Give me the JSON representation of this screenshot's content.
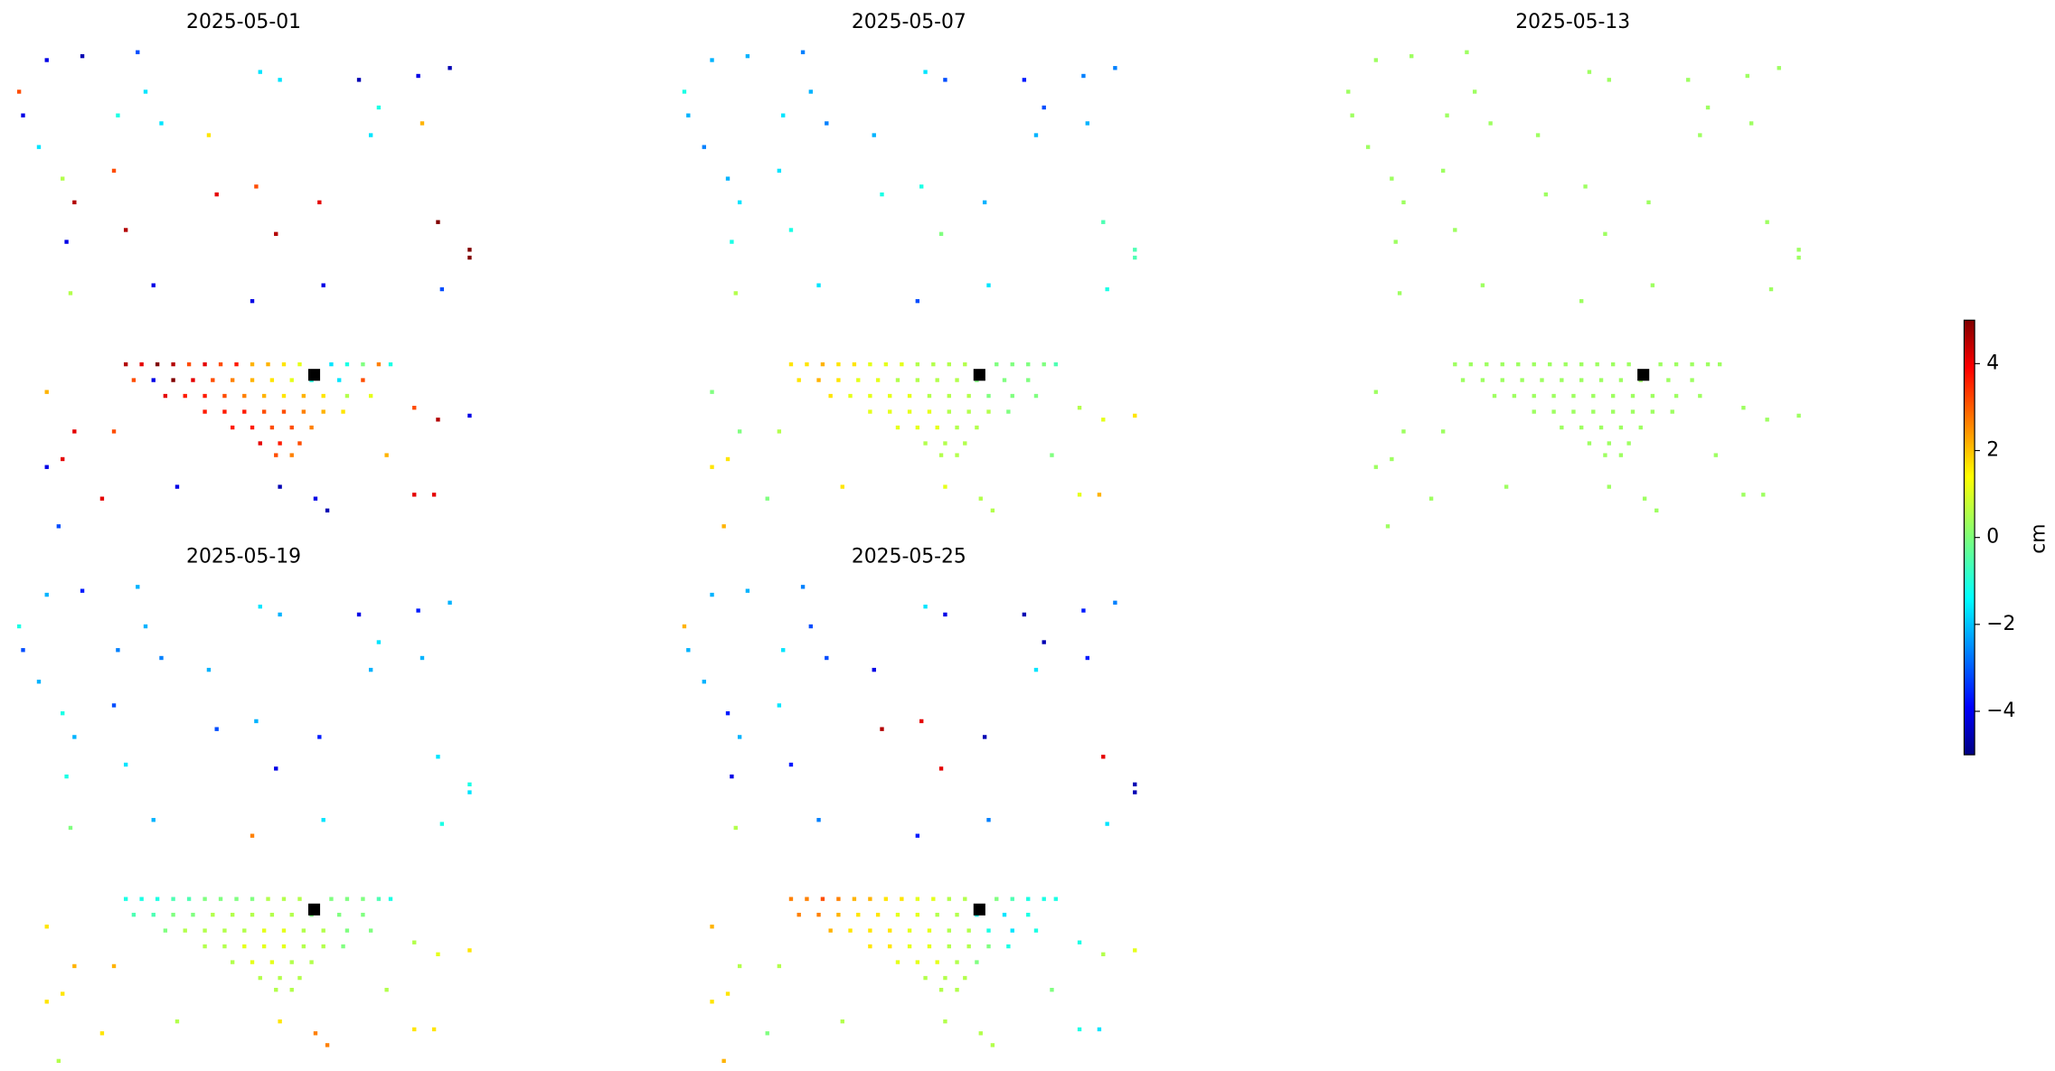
{
  "chart_data": {
    "type": "heatmap",
    "colormap": "jet",
    "xlim": [
      0,
      120
    ],
    "ylim": [
      0,
      125
    ],
    "x": [
      8,
      17,
      31,
      62,
      67,
      87,
      102,
      110,
      1,
      2,
      33,
      92,
      26,
      37,
      103,
      6,
      49,
      90,
      12,
      25,
      61,
      15,
      51,
      77,
      107,
      13,
      28,
      66,
      115,
      115,
      14,
      35,
      78,
      108,
      60,
      8,
      15,
      25,
      94,
      101,
      107,
      115,
      8,
      12,
      22,
      41,
      67,
      76,
      101,
      106,
      11,
      79,
      28,
      32,
      36,
      40,
      44,
      48,
      52,
      56,
      60,
      64,
      68,
      72,
      80,
      84,
      88,
      92,
      95,
      30,
      35,
      40,
      45,
      50,
      55,
      60,
      65,
      70,
      75,
      82,
      88,
      38,
      43,
      48,
      53,
      58,
      63,
      68,
      73,
      78,
      84,
      90,
      48,
      53,
      58,
      63,
      68,
      73,
      78,
      83,
      55,
      60,
      65,
      70,
      75,
      62,
      67,
      72,
      66,
      70
    ],
    "y": [
      3,
      2,
      1,
      6,
      8,
      8,
      7,
      5,
      11,
      17,
      11,
      15,
      17,
      19,
      19,
      25,
      22,
      22,
      33,
      31,
      35,
      39,
      37,
      39,
      44,
      49,
      46,
      47,
      51,
      53,
      62,
      60,
      60,
      61,
      64,
      87,
      97,
      97,
      103,
      91,
      94,
      93,
      106,
      104,
      114,
      111,
      111,
      114,
      113,
      113,
      121,
      117,
      80,
      80,
      80,
      80,
      80,
      80,
      80,
      80,
      80,
      80,
      80,
      80,
      80,
      80,
      80,
      80,
      80,
      84,
      84,
      84,
      84,
      84,
      84,
      84,
      84,
      84,
      84,
      84,
      84,
      88,
      88,
      88,
      88,
      88,
      88,
      88,
      88,
      88,
      88,
      88,
      92,
      92,
      92,
      92,
      92,
      92,
      92,
      92,
      96,
      96,
      96,
      96,
      96,
      100,
      100,
      100,
      103,
      103
    ],
    "reference": {
      "x": 76,
      "y": 83,
      "color": "#000000"
    },
    "panels": [
      {
        "title": "2025-05-01",
        "values": [
          -4,
          -4.5,
          -3,
          -1.5,
          -1.5,
          -4.5,
          -4,
          -4.5,
          3,
          -4,
          -1.5,
          -1,
          -1,
          -1.5,
          2,
          -1.5,
          1.5,
          -1.5,
          0.5,
          3,
          3,
          4.5,
          4,
          4,
          5,
          -4,
          4.5,
          4.5,
          5,
          5,
          0.5,
          -4,
          -4,
          -3,
          -4,
          2,
          4,
          3,
          2,
          3,
          4.5,
          -4,
          -4,
          4,
          4,
          -4,
          -4.5,
          -4,
          4,
          4,
          -3,
          -4.5,
          4.5,
          4,
          5,
          4.5,
          3,
          4,
          3,
          3.5,
          2,
          2,
          1.5,
          1,
          -1.5,
          -1,
          0,
          2.5,
          -1,
          3,
          -4,
          5,
          4,
          3,
          2.5,
          2,
          1.5,
          1,
          -1,
          -1.5,
          3,
          4,
          3.5,
          3.5,
          3,
          2.5,
          2,
          1.5,
          2,
          1.5,
          0.5,
          1,
          3.5,
          3.5,
          3.5,
          3,
          3,
          2.5,
          2,
          1.5,
          3.5,
          3.5,
          3,
          3,
          2.5,
          4,
          3.5,
          3,
          3,
          2.5
        ]
      },
      {
        "title": "2025-05-07",
        "values": [
          -2,
          -2,
          -2.5,
          -1.5,
          -3,
          -3.5,
          -2.5,
          -2.5,
          -1,
          -2,
          -2,
          -3,
          -1.5,
          -2.5,
          -2,
          -2.5,
          -2,
          -2,
          -2,
          -1.5,
          -1,
          -1.5,
          -1,
          -2,
          -0.5,
          -1,
          -1,
          0,
          -0.5,
          -0.5,
          0.5,
          -1.5,
          -1.5,
          -1,
          -3,
          0,
          0,
          0.5,
          0,
          0.5,
          1,
          1.5,
          1.5,
          1.5,
          0,
          1.5,
          1,
          0.5,
          1,
          2,
          2,
          0.5,
          1.5,
          1.5,
          2,
          1.5,
          1.5,
          1,
          1,
          1,
          0.5,
          0.5,
          0.5,
          0.5,
          0,
          0,
          0,
          0,
          -0.5,
          1.5,
          2,
          1.5,
          1,
          1,
          0.5,
          0.5,
          0.5,
          0.5,
          0,
          0,
          0,
          1.5,
          1,
          1,
          1,
          1,
          0.5,
          0.5,
          0.5,
          0,
          0,
          0,
          1,
          1,
          1,
          1,
          0.5,
          0.5,
          0.5,
          0,
          1,
          1,
          1,
          0.5,
          0.5,
          0.5,
          0.5,
          0.5,
          0.5,
          0.5
        ]
      },
      {
        "title": "2025-05-13",
        "values": [
          0.3,
          0.3,
          0.3,
          0.3,
          0.3,
          0.3,
          0.3,
          0.3,
          0.3,
          0.3,
          0.3,
          0.3,
          0.3,
          0.3,
          0.3,
          0.3,
          0.3,
          0.3,
          0.3,
          0.3,
          0.3,
          0.3,
          0.3,
          0.3,
          0.3,
          0.3,
          0.3,
          0.3,
          0.3,
          0.3,
          0.3,
          0.3,
          0.3,
          0.3,
          0.3,
          0.3,
          0.3,
          0.3,
          0.3,
          0.3,
          0.3,
          0.3,
          0.3,
          0.3,
          0.3,
          0.3,
          0.3,
          0.3,
          0.3,
          0.3,
          0.3,
          0.3,
          0.3,
          0.3,
          0.3,
          0.3,
          0.3,
          0.3,
          0.3,
          0.3,
          0.3,
          0.3,
          0.3,
          0.3,
          0.3,
          0.3,
          0.3,
          0.3,
          0.3,
          0.3,
          0.3,
          0.3,
          0.3,
          0.3,
          0.3,
          0.3,
          0.3,
          0.3,
          0.3,
          0.3,
          0.3,
          0.3,
          0.3,
          0.3,
          0.3,
          0.3,
          0.3,
          0.3,
          0.3,
          0.3,
          0.3,
          0.3,
          0.3,
          0.3,
          0.3,
          0.3,
          0.3,
          0.3,
          0.3,
          0.3,
          0.3,
          0.3,
          0.3,
          0.3,
          0.3,
          0.3,
          0.3,
          0.3,
          0.3,
          0.3
        ]
      },
      {
        "title": "2025-05-19",
        "values": [
          -2,
          -3.5,
          -2,
          -1.5,
          -2,
          -4,
          -3.5,
          -2,
          -1,
          -3,
          -2,
          -1.5,
          -2.5,
          -2.5,
          -2,
          -2,
          -2,
          -2,
          -1,
          -3,
          -2,
          -2,
          -3,
          -3.5,
          -1.5,
          -1,
          -1.5,
          -4,
          -1,
          -1.5,
          0,
          -2,
          -1.5,
          -1,
          2.5,
          1.5,
          2,
          2,
          0.5,
          0.5,
          1,
          1.5,
          1.5,
          1.5,
          1.5,
          0.5,
          1.5,
          2.5,
          1.5,
          1.5,
          0.5,
          2.5,
          -1,
          -1,
          -1,
          -0.5,
          -0.5,
          0,
          0,
          0,
          0,
          0.5,
          0.5,
          0.5,
          0,
          0,
          0,
          -0.5,
          -1,
          -0.5,
          -0.5,
          0,
          0,
          0.5,
          0.5,
          0.5,
          0.5,
          0.5,
          0,
          0,
          0,
          0,
          0.5,
          0.5,
          0.5,
          0.5,
          1,
          1,
          0.5,
          0.5,
          0,
          0,
          0.5,
          0.5,
          1,
          1,
          1,
          0.5,
          0.5,
          0,
          0.5,
          1,
          1,
          0.5,
          0.5,
          0.5,
          0.5,
          0.5,
          0.5,
          0.5
        ]
      },
      {
        "title": "2025-05-25",
        "values": [
          -2,
          -2,
          -2.5,
          -1.5,
          -4,
          -4.5,
          -3.5,
          -2.5,
          2,
          -2,
          -3,
          -4.5,
          -1.5,
          -3,
          -3.5,
          -2,
          -4,
          -1.5,
          -3.5,
          -1.5,
          4,
          -2,
          4.5,
          -4.5,
          4,
          -4,
          -3.5,
          4,
          -4.5,
          -4.5,
          0.5,
          -2.5,
          -2.5,
          -1.5,
          -3.5,
          2,
          0.5,
          0.5,
          0,
          -1,
          0.5,
          1,
          1.5,
          1.5,
          0,
          0.5,
          0.5,
          0.5,
          -1,
          -1.5,
          2,
          0.5,
          2.5,
          2.5,
          3,
          2.5,
          2,
          2,
          1.5,
          1.5,
          1,
          1,
          0.5,
          0.5,
          0,
          -0.5,
          -1,
          -1,
          -1,
          2.5,
          2.5,
          2,
          1.5,
          1.5,
          1,
          1,
          0.5,
          0.5,
          -1,
          -1.5,
          -1,
          2,
          1.5,
          1.5,
          1.5,
          1,
          1,
          0.5,
          0.5,
          -1,
          -1.5,
          -1,
          1.5,
          1.5,
          1,
          1,
          0.5,
          0.5,
          0,
          -1,
          1,
          1,
          1,
          0.5,
          0,
          0.5,
          0.5,
          0.5,
          0.5,
          0.5
        ]
      }
    ],
    "colorbar": {
      "label": "cm",
      "lim": [
        -5,
        5
      ],
      "ticks": [
        {
          "value": -4,
          "label": "−4"
        },
        {
          "value": -2,
          "label": "−2"
        },
        0,
        2,
        4
      ]
    }
  }
}
